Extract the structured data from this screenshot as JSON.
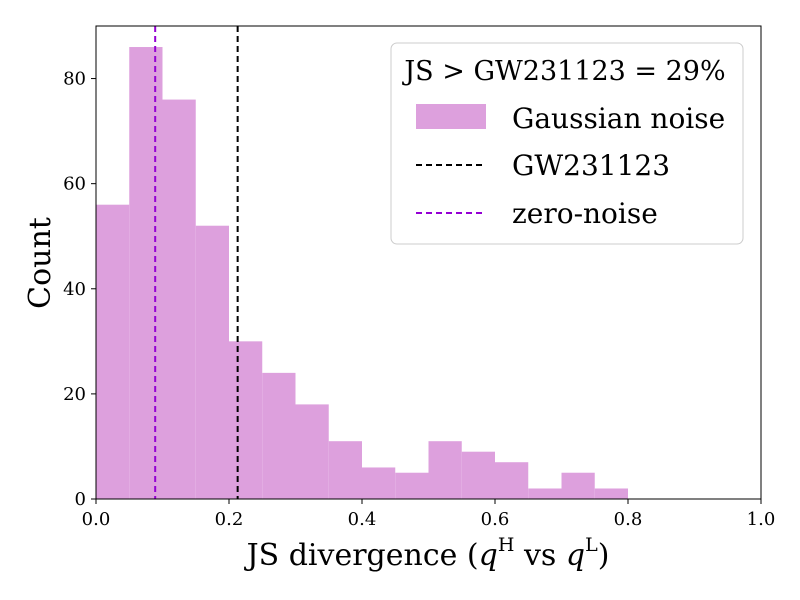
{
  "chart_data": {
    "type": "histogram",
    "xlabel": {
      "main": "JS divergence (",
      "q1": "q",
      "sup1": "H",
      "vs": " vs ",
      "q2": "q",
      "sup2": "L",
      "close": ")"
    },
    "ylabel": "Count",
    "xlim": [
      0.0,
      1.0
    ],
    "ylim": [
      0,
      90
    ],
    "xticks": [
      0.0,
      0.2,
      0.4,
      0.6,
      0.8,
      1.0
    ],
    "xtick_labels": [
      "0.0",
      "0.2",
      "0.4",
      "0.6",
      "0.8",
      "1.0"
    ],
    "yticks": [
      0,
      20,
      40,
      60,
      80
    ],
    "ytick_labels": [
      "0",
      "20",
      "40",
      "60",
      "80"
    ],
    "bin_width": 0.05,
    "bins": [
      {
        "x0": 0.0,
        "x1": 0.05,
        "count": 56
      },
      {
        "x0": 0.05,
        "x1": 0.1,
        "count": 86
      },
      {
        "x0": 0.1,
        "x1": 0.15,
        "count": 76
      },
      {
        "x0": 0.15,
        "x1": 0.2,
        "count": 52
      },
      {
        "x0": 0.2,
        "x1": 0.25,
        "count": 30
      },
      {
        "x0": 0.25,
        "x1": 0.3,
        "count": 24
      },
      {
        "x0": 0.3,
        "x1": 0.35,
        "count": 18
      },
      {
        "x0": 0.35,
        "x1": 0.4,
        "count": 11
      },
      {
        "x0": 0.4,
        "x1": 0.45,
        "count": 6
      },
      {
        "x0": 0.45,
        "x1": 0.5,
        "count": 5
      },
      {
        "x0": 0.5,
        "x1": 0.55,
        "count": 11
      },
      {
        "x0": 0.55,
        "x1": 0.6,
        "count": 9
      },
      {
        "x0": 0.6,
        "x1": 0.65,
        "count": 7
      },
      {
        "x0": 0.65,
        "x1": 0.7,
        "count": 2
      },
      {
        "x0": 0.7,
        "x1": 0.75,
        "count": 5
      },
      {
        "x0": 0.75,
        "x1": 0.8,
        "count": 2
      }
    ],
    "vlines": [
      {
        "name": "GW231123",
        "x": 0.213,
        "color": "#000000",
        "style": "dashed"
      },
      {
        "name": "zero-noise",
        "x": 0.089,
        "color": "#9400d3",
        "style": "dashed"
      }
    ],
    "colors": {
      "hist_fill": "#dda0dd"
    },
    "legend": {
      "title": "JS > GW231123 = 29%",
      "placement": "top-right",
      "entries": [
        {
          "label": "Gaussian noise",
          "kind": "patch",
          "color": "#dda0dd"
        },
        {
          "label": "GW231123",
          "kind": "dashed-line",
          "color": "#000000"
        },
        {
          "label": "zero-noise",
          "kind": "dashed-line",
          "color": "#9400d3"
        }
      ]
    }
  }
}
